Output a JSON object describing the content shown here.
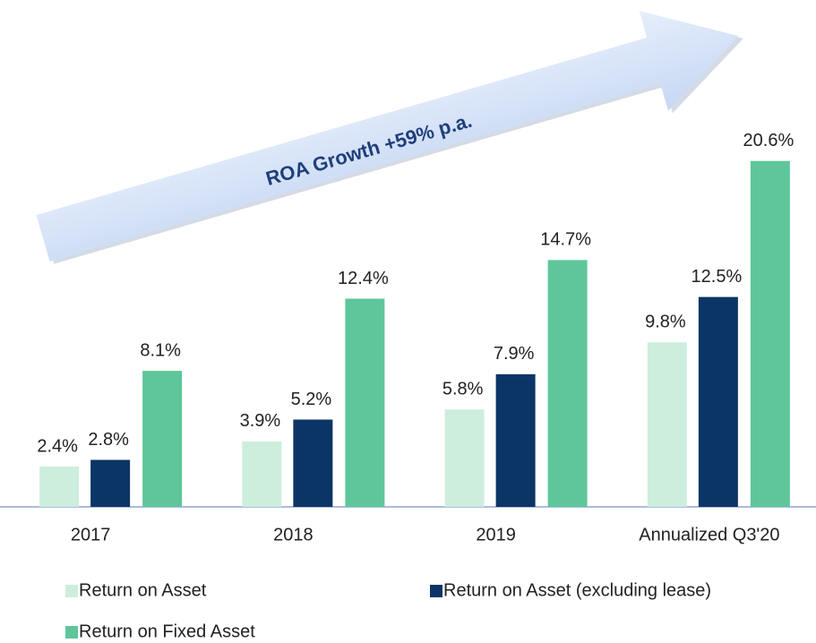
{
  "chart_data": {
    "type": "bar",
    "annotation": "ROA Growth +59% p.a.",
    "categories": [
      "2017",
      "2018",
      "2019",
      "Annualized Q3'20"
    ],
    "series": [
      {
        "name": "Return on Asset",
        "color": "#cdeedd",
        "values": [
          2.4,
          3.9,
          5.8,
          9.8
        ],
        "value_labels": [
          "2.4%",
          "3.9%",
          "5.8%",
          "9.8%"
        ]
      },
      {
        "name": "Return on Asset (excluding lease)",
        "color": "#0b3566",
        "values": [
          2.8,
          5.2,
          7.9,
          12.5
        ],
        "value_labels": [
          "2.8%",
          "5.2%",
          "7.9%",
          "12.5%"
        ]
      },
      {
        "name": "Return on Fixed Asset",
        "color": "#5ec69a",
        "values": [
          8.1,
          12.4,
          14.7,
          20.6
        ],
        "value_labels": [
          "8.1%",
          "12.4%",
          "14.7%",
          "20.6%"
        ]
      }
    ],
    "ylim": [
      0,
      24
    ]
  }
}
